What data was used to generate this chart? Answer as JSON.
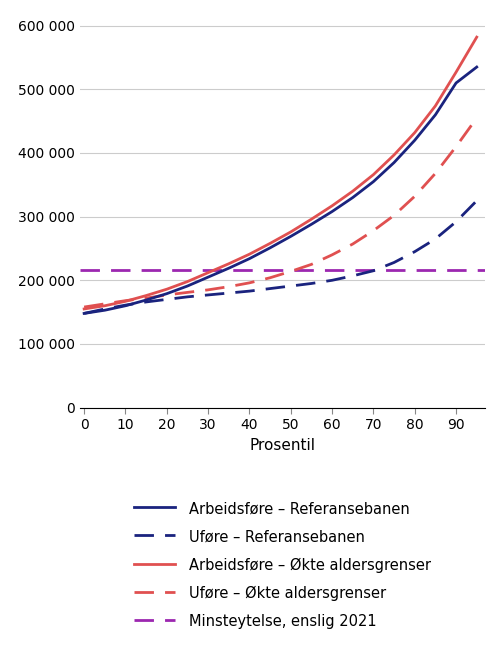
{
  "title": "",
  "xlabel": "Prosentil",
  "ylabel": "",
  "xlim": [
    -1,
    97
  ],
  "ylim": [
    0,
    620000
  ],
  "yticks": [
    0,
    100000,
    200000,
    300000,
    400000,
    500000,
    600000
  ],
  "ytick_labels": [
    "0",
    "100 000",
    "200 000",
    "300 000",
    "400 000",
    "500 000",
    "600 000"
  ],
  "xticks": [
    0,
    10,
    20,
    30,
    40,
    50,
    60,
    70,
    80,
    90
  ],
  "percentiles": [
    0,
    5,
    10,
    15,
    20,
    25,
    30,
    35,
    40,
    45,
    50,
    55,
    60,
    65,
    70,
    75,
    80,
    85,
    90,
    95
  ],
  "arbeidsf_ref": [
    148000,
    153000,
    160000,
    169000,
    179000,
    191000,
    205000,
    219000,
    234000,
    251000,
    269000,
    288000,
    308000,
    330000,
    355000,
    385000,
    420000,
    460000,
    510000,
    535000
  ],
  "ufore_ref": [
    148000,
    155000,
    161000,
    166000,
    170000,
    174000,
    177000,
    180000,
    183000,
    187000,
    191000,
    195000,
    200000,
    207000,
    215000,
    228000,
    245000,
    265000,
    292000,
    325000
  ],
  "arbeidsf_okte": [
    155000,
    160000,
    167000,
    176000,
    186000,
    198000,
    212000,
    226000,
    241000,
    258000,
    276000,
    296000,
    317000,
    340000,
    366000,
    397000,
    432000,
    474000,
    527000,
    582000
  ],
  "ufore_okte": [
    158000,
    163000,
    168000,
    172000,
    177000,
    181000,
    185000,
    190000,
    196000,
    204000,
    214000,
    225000,
    240000,
    257000,
    278000,
    302000,
    332000,
    368000,
    410000,
    455000
  ],
  "minsteytelse": 216000,
  "color_arbeidsf_ref": "#1a237e",
  "color_ufore_ref": "#1a237e",
  "color_arbeidsf_okte": "#e05050",
  "color_ufore_okte": "#e05050",
  "color_minsteytelse": "#9c27b0",
  "lw_solid": 2.0,
  "lw_dashed": 2.0,
  "legend_labels": [
    "Arbeidsføre – Referansebanen",
    "Uføre – Referansebanen",
    "Arbeidsføre – Økte aldersgrenser",
    "Uføre – Økte aldersgrenser",
    "Minsteytelse, enslig 2021"
  ],
  "figsize": [
    5.0,
    6.47
  ],
  "dpi": 100
}
